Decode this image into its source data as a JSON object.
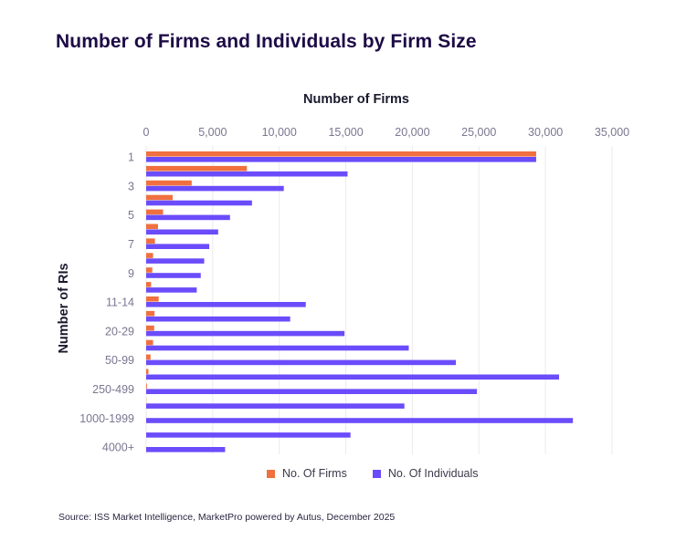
{
  "chart_data": {
    "type": "bar",
    "orientation": "horizontal",
    "title": "Number of Firms and Individuals by Firm Size",
    "xlabel": "Number of Firms",
    "ylabel": "Number of RIs",
    "xlim": [
      0,
      35000
    ],
    "x_ticks": [
      0,
      5000,
      10000,
      15000,
      20000,
      25000,
      30000,
      35000
    ],
    "x_tick_labels": [
      "0",
      "5,000",
      "10,000",
      "15,000",
      "20,000",
      "25,000",
      "30,000",
      "35,000"
    ],
    "x_axis_position": "top",
    "grid": true,
    "legend_position": "bottom",
    "row_count": 21,
    "visible_category_labels": [
      {
        "row": 0,
        "label": "1"
      },
      {
        "row": 2,
        "label": "3"
      },
      {
        "row": 4,
        "label": "5"
      },
      {
        "row": 6,
        "label": "7"
      },
      {
        "row": 8,
        "label": "9"
      },
      {
        "row": 10,
        "label": "11-14"
      },
      {
        "row": 12,
        "label": "20-29"
      },
      {
        "row": 14,
        "label": "50-99"
      },
      {
        "row": 16,
        "label": "250-499"
      },
      {
        "row": 18,
        "label": "1000-1999"
      },
      {
        "row": 20,
        "label": "4000+"
      }
    ],
    "series": [
      {
        "name": "No. Of Firms",
        "color": "#f0703f",
        "values": [
          29300,
          7570,
          3420,
          1990,
          1270,
          890,
          660,
          520,
          460,
          370,
          940,
          630,
          600,
          520,
          330,
          170,
          60,
          15,
          5,
          2,
          1
        ]
      },
      {
        "name": "No. Of Individuals",
        "color": "#6b4cfa",
        "values": [
          29300,
          15130,
          10340,
          7950,
          6300,
          5410,
          4740,
          4360,
          4100,
          3800,
          11990,
          10820,
          14900,
          19730,
          23270,
          31020,
          24850,
          19400,
          32060,
          15350,
          5930
        ]
      }
    ]
  },
  "source": "Source: ISS Market Intelligence, MarketPro powered by Autus, December 2025"
}
